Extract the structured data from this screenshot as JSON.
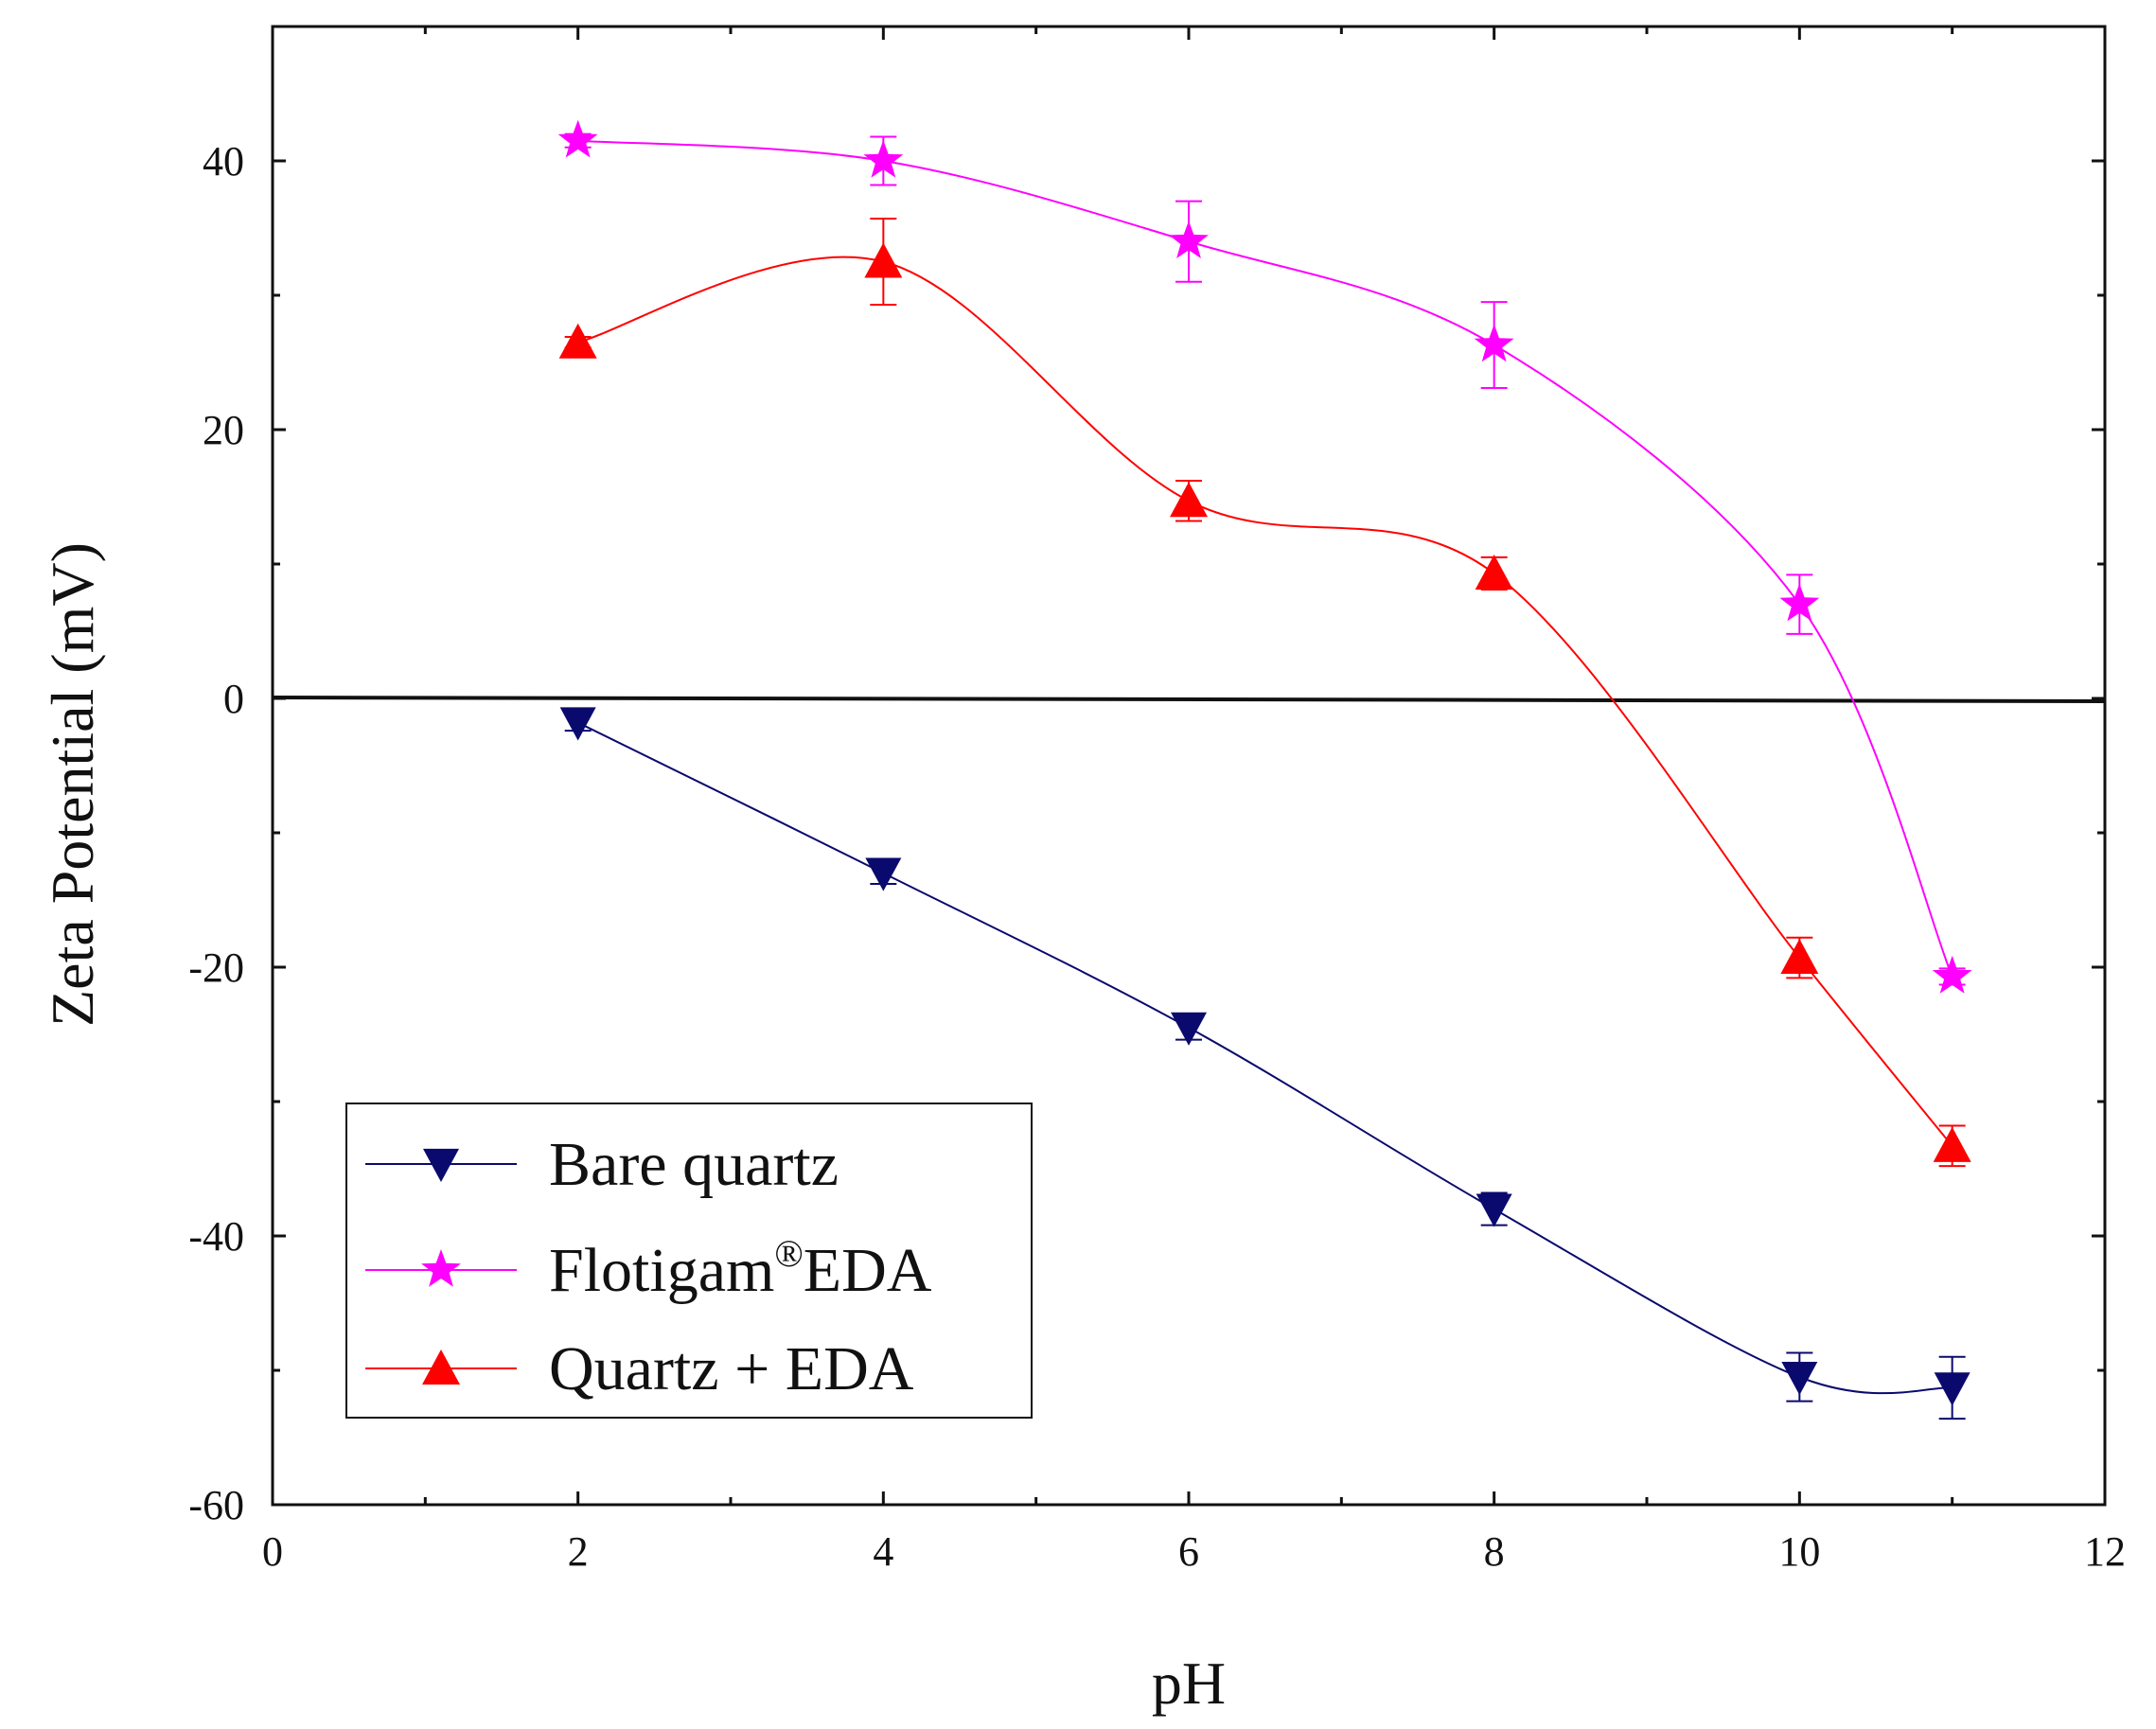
{
  "chart_data": {
    "type": "line",
    "title": "",
    "xlabel": "pH",
    "ylabel": "Zeta Potential (mV)",
    "xlim": [
      0,
      12
    ],
    "ylim": [
      -60,
      50
    ],
    "x_ticks": [
      0,
      2,
      4,
      6,
      8,
      10,
      12
    ],
    "x_tick_labels": [
      "0",
      "2",
      "4",
      "6",
      "8",
      "10",
      "12"
    ],
    "y_ticks": [
      -60,
      -40,
      -20,
      0,
      20,
      40
    ],
    "y_tick_labels": [
      "-60",
      "-40",
      "-20",
      "0",
      "20",
      "40"
    ],
    "grid": false,
    "zero_line": true,
    "legend_position": "bottom-left",
    "series": [
      {
        "name": "Bare quartz",
        "name_main": "Bare quartz",
        "name_sup": "",
        "name_suffix": "",
        "color": "#0a0a6e",
        "marker": "triangle-down",
        "x": [
          2,
          4,
          6,
          8,
          10,
          11
        ],
        "values": [
          -1.8,
          -13.0,
          -24.5,
          -38.0,
          -50.5,
          -51.3
        ],
        "errors": [
          0.6,
          0.8,
          0.9,
          1.2,
          1.8,
          2.3
        ]
      },
      {
        "name": "Flotigam®EDA",
        "name_main": "Flotigam",
        "name_sup": "®",
        "name_suffix": "EDA",
        "color": "#ff00ff",
        "marker": "star",
        "x": [
          2,
          4,
          6,
          8,
          10,
          11
        ],
        "values": [
          41.5,
          40.0,
          34.0,
          26.3,
          7.0,
          -20.7
        ],
        "errors": [
          0.5,
          1.8,
          3.0,
          3.2,
          2.2,
          0.6
        ]
      },
      {
        "name": "Quartz + EDA",
        "name_main": "Quartz + EDA",
        "name_sup": "",
        "name_suffix": "",
        "color": "#ff0000",
        "marker": "triangle-up",
        "x": [
          2,
          4,
          6,
          8,
          10,
          11
        ],
        "values": [
          26.5,
          32.5,
          14.7,
          9.3,
          -19.3,
          -33.3
        ],
        "errors": [
          0.4,
          3.2,
          1.5,
          1.2,
          1.5,
          1.5
        ]
      }
    ]
  }
}
